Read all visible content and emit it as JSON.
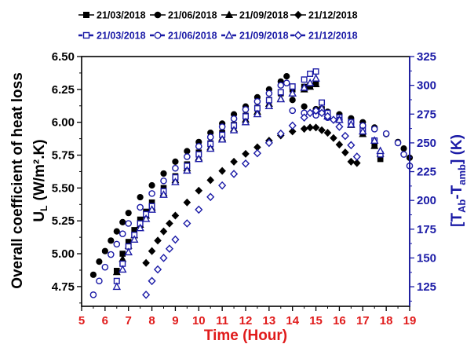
{
  "chart_data": {
    "type": "scatter",
    "xlabel": "Time (Hour)",
    "ylabel": "Overall coefficient of heat loss",
    "ylabel_line2": "(W/m².K)",
    "ylabel_symbol": "U",
    "ylabel_symbol_sub": "L",
    "y2label": "[TAb-Tamb] (K)",
    "y2label_parts": [
      "[T",
      "Ab",
      "-T",
      "amb",
      "] (K)"
    ],
    "xlim": [
      5,
      19
    ],
    "ylim": [
      4.6,
      6.5
    ],
    "y2lim": [
      108,
      325
    ],
    "x_ticks": [
      "5",
      "6",
      "7",
      "8",
      "9",
      "10",
      "11",
      "12",
      "13",
      "14",
      "15",
      "16",
      "17",
      "18",
      "19"
    ],
    "y_ticks": [
      "4.75",
      "5.00",
      "5.25",
      "5.50",
      "5.75",
      "6.00",
      "6.25",
      "6.50"
    ],
    "y2_ticks": [
      "125",
      "150",
      "175",
      "200",
      "225",
      "250",
      "275",
      "300",
      "325"
    ],
    "colors": {
      "left": "#000000",
      "right": "#1a1aa6",
      "time_axis": "#e01b1b"
    },
    "legend_position": "top",
    "series": [
      {
        "name": "21/03/2018",
        "axis": "left",
        "marker": "square",
        "filled": true,
        "x": [
          6.5,
          6.75,
          7,
          7.25,
          7.5,
          7.75,
          8,
          8.5,
          9,
          9.5,
          10,
          10.5,
          11,
          11.5,
          12,
          12.5,
          13,
          13.5,
          14,
          14.5,
          14.75,
          15,
          15.25,
          15.5,
          16,
          16.5,
          17,
          17.5,
          17.75
        ],
        "y": [
          4.87,
          5.0,
          5.09,
          5.18,
          5.26,
          5.32,
          5.39,
          5.5,
          5.59,
          5.68,
          5.77,
          5.84,
          5.92,
          5.98,
          6.05,
          6.11,
          6.17,
          6.22,
          6.25,
          6.27,
          6.28,
          6.3,
          6.1,
          6.07,
          6.05,
          6.0,
          5.92,
          5.82,
          5.72
        ]
      },
      {
        "name": "21/06/2018",
        "axis": "left",
        "marker": "circle",
        "filled": true,
        "x": [
          5.5,
          5.75,
          6,
          6.25,
          6.5,
          6.75,
          7,
          7.5,
          8,
          8.5,
          9,
          9.5,
          10,
          10.5,
          11,
          11.5,
          12,
          12.5,
          13,
          13.5,
          13.75,
          14,
          14.5,
          15,
          15.5,
          16,
          16.5,
          17,
          17.5,
          18,
          18.5,
          18.75,
          19
        ],
        "y": [
          4.84,
          4.94,
          5.02,
          5.1,
          5.17,
          5.24,
          5.31,
          5.43,
          5.52,
          5.61,
          5.7,
          5.78,
          5.85,
          5.92,
          5.99,
          6.06,
          6.12,
          6.19,
          6.25,
          6.31,
          6.35,
          6.17,
          6.12,
          6.1,
          6.08,
          6.06,
          6.03,
          6.0,
          5.96,
          5.91,
          5.85,
          5.8,
          5.73
        ]
      },
      {
        "name": "21/09/2018",
        "axis": "left",
        "marker": "triangle",
        "filled": true,
        "x": [
          6.5,
          6.75,
          7,
          7.25,
          7.5,
          7.75,
          8,
          8.5,
          9,
          9.5,
          10,
          10.5,
          11,
          11.5,
          12,
          12.5,
          13,
          13.5,
          14,
          14.5,
          14.75,
          15,
          15.25,
          15.5,
          16,
          16.5,
          17,
          17.5,
          17.75
        ],
        "y": [
          4.86,
          4.96,
          5.06,
          5.14,
          5.22,
          5.29,
          5.35,
          5.46,
          5.56,
          5.65,
          5.73,
          5.81,
          5.88,
          5.95,
          6.02,
          6.08,
          6.14,
          6.18,
          6.22,
          6.25,
          6.27,
          6.29,
          6.08,
          6.05,
          6.02,
          5.98,
          5.91,
          5.82,
          5.76
        ]
      },
      {
        "name": "21/12/2018",
        "axis": "left",
        "marker": "diamond",
        "filled": true,
        "x": [
          7.75,
          8,
          8.25,
          8.5,
          8.75,
          9,
          9.5,
          10,
          10.5,
          11,
          11.5,
          12,
          12.5,
          13,
          13.5,
          14,
          14.5,
          14.75,
          15,
          15.25,
          15.5,
          15.75,
          16,
          16.25,
          16.5,
          16.75
        ],
        "y": [
          4.93,
          5.02,
          5.1,
          5.17,
          5.23,
          5.29,
          5.39,
          5.48,
          5.56,
          5.63,
          5.7,
          5.76,
          5.81,
          5.86,
          5.9,
          5.93,
          5.95,
          5.96,
          5.96,
          5.94,
          5.92,
          5.88,
          5.83,
          5.77,
          5.7,
          5.69
        ]
      },
      {
        "name": "21/03/2018",
        "axis": "right",
        "marker": "square",
        "filled": false,
        "x": [
          6.5,
          6.75,
          7,
          7.25,
          7.5,
          7.75,
          8,
          8.5,
          9,
          9.5,
          10,
          10.5,
          11,
          11.5,
          12,
          12.5,
          13,
          13.5,
          14,
          14.5,
          14.75,
          15,
          15.25,
          15.5,
          16,
          16.5,
          17,
          17.5,
          17.75
        ],
        "y": [
          130,
          145,
          160,
          170,
          180,
          188,
          195,
          208,
          220,
          230,
          240,
          249,
          257,
          265,
          273,
          280,
          287,
          294,
          299,
          305,
          310,
          312,
          285,
          276,
          272,
          268,
          262,
          252,
          240
        ]
      },
      {
        "name": "21/06/2018",
        "axis": "right",
        "marker": "circle",
        "filled": false,
        "x": [
          5.5,
          5.75,
          6,
          6.25,
          6.5,
          6.75,
          7,
          7.5,
          8,
          8.5,
          9,
          9.5,
          10,
          10.5,
          11,
          11.5,
          12,
          12.5,
          13,
          13.5,
          13.75,
          14,
          14.5,
          15,
          15.5,
          16,
          16.5,
          17,
          17.5,
          18,
          18.5,
          18.75,
          19
        ],
        "y": [
          118,
          130,
          142,
          153,
          162,
          171,
          180,
          194,
          206,
          217,
          228,
          238,
          247,
          255,
          264,
          271,
          279,
          286,
          293,
          300,
          302,
          278,
          276,
          274,
          272,
          270,
          268,
          265,
          262,
          258,
          250,
          240,
          230
        ]
      },
      {
        "name": "21/09/2018",
        "axis": "right",
        "marker": "triangle",
        "filled": false,
        "x": [
          6.5,
          6.75,
          7,
          7.25,
          7.5,
          7.75,
          8,
          8.5,
          9,
          9.5,
          10,
          10.5,
          11,
          11.5,
          12,
          12.5,
          13,
          13.5,
          14,
          14.5,
          14.75,
          15,
          15.25,
          15.5,
          16,
          16.5,
          17,
          17.5,
          17.75
        ],
        "y": [
          125,
          140,
          155,
          166,
          176,
          184,
          192,
          205,
          216,
          226,
          236,
          245,
          253,
          261,
          268,
          275,
          282,
          288,
          293,
          298,
          302,
          306,
          280,
          273,
          270,
          266,
          260,
          252,
          243
        ]
      },
      {
        "name": "21/12/2018",
        "axis": "right",
        "marker": "diamond",
        "filled": false,
        "x": [
          7.75,
          8,
          8.25,
          8.5,
          8.75,
          9,
          9.5,
          10,
          10.5,
          11,
          11.5,
          12,
          12.5,
          13,
          13.5,
          14,
          14.5,
          14.75,
          15,
          15.25,
          15.5,
          15.75,
          16,
          16.25,
          16.5,
          16.75
        ],
        "y": [
          118,
          130,
          140,
          150,
          158,
          166,
          180,
          192,
          203,
          213,
          223,
          232,
          241,
          250,
          258,
          265,
          272,
          276,
          278,
          276,
          273,
          270,
          264,
          256,
          248,
          238
        ]
      }
    ]
  }
}
